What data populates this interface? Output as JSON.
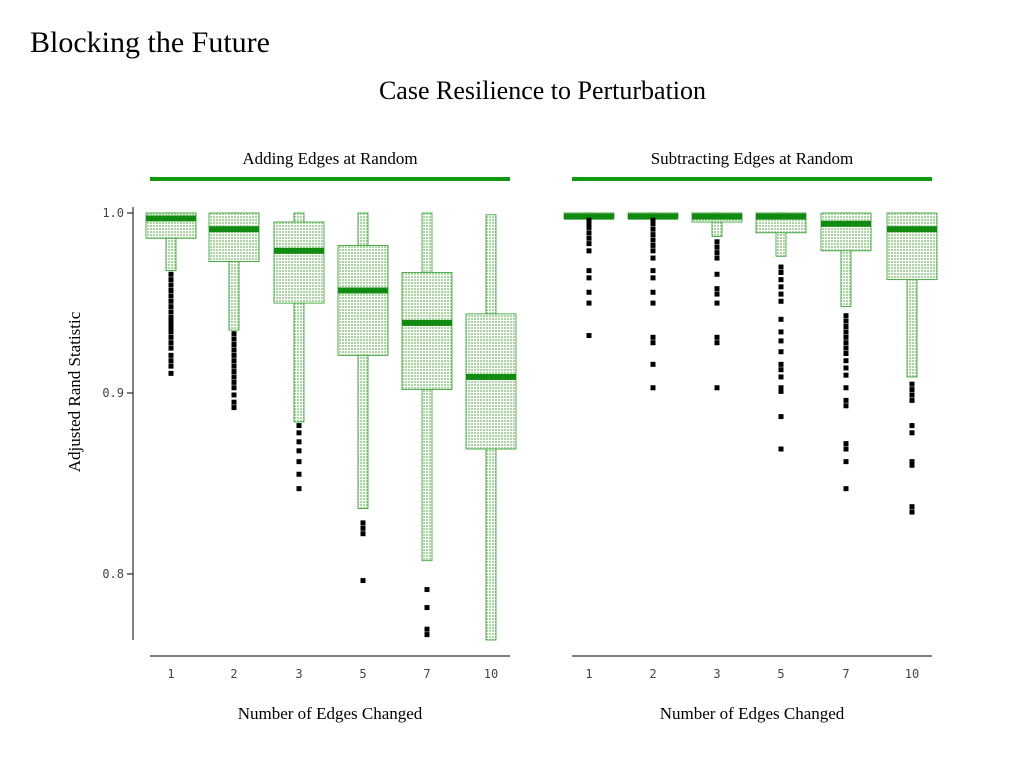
{
  "slide_title": "Blocking the Future",
  "colors": {
    "box_fill": "#cfe8c9",
    "box_edge": "#2a9a2a",
    "median": "#118a11",
    "strip": "#119911",
    "outlier": "#000000",
    "axis": "#000000"
  },
  "chart_data": {
    "type": "boxplot",
    "title": "Case Resilience to Perturbation",
    "ylabel": "Adjusted Rand Statistic",
    "ylim": [
      0.763,
      1.0
    ],
    "yticks": [
      "0.8",
      "0.9",
      "1.0"
    ],
    "grid": false,
    "panels": [
      {
        "name": "Adding Edges at Random",
        "xlabel": "Number of Edges Changed",
        "categories": [
          "1",
          "2",
          "3",
          "5",
          "7",
          "10"
        ],
        "boxes": [
          {
            "q1": 0.986,
            "median": 0.997,
            "q3": 1.0,
            "whisker_low": 0.968,
            "whisker_high": 1.0,
            "outliers": [
              0.966,
              0.963,
              0.96,
              0.957,
              0.954,
              0.951,
              0.948,
              0.945,
              0.942,
              0.94,
              0.938,
              0.936,
              0.934,
              0.931,
              0.928,
              0.925,
              0.921,
              0.918,
              0.915,
              0.911
            ]
          },
          {
            "q1": 0.973,
            "median": 0.991,
            "q3": 1.0,
            "whisker_low": 0.935,
            "whisker_high": 1.0,
            "outliers": [
              0.933,
              0.93,
              0.927,
              0.924,
              0.921,
              0.918,
              0.915,
              0.912,
              0.909,
              0.906,
              0.903,
              0.899,
              0.895,
              0.892
            ]
          },
          {
            "q1": 0.95,
            "median": 0.979,
            "q3": 0.995,
            "whisker_low": 0.884,
            "whisker_high": 1.0,
            "outliers": [
              0.882,
              0.878,
              0.873,
              0.868,
              0.862,
              0.855,
              0.847
            ]
          },
          {
            "q1": 0.921,
            "median": 0.957,
            "q3": 0.982,
            "whisker_low": 0.836,
            "whisker_high": 1.0,
            "outliers": [
              0.828,
              0.825,
              0.822,
              0.796
            ]
          },
          {
            "q1": 0.902,
            "median": 0.939,
            "q3": 0.967,
            "whisker_low": 0.807,
            "whisker_high": 1.0,
            "outliers": [
              0.791,
              0.781,
              0.769,
              0.766
            ]
          },
          {
            "q1": 0.869,
            "median": 0.909,
            "q3": 0.944,
            "whisker_low": 0.763,
            "whisker_high": 0.999,
            "outliers": []
          }
        ]
      },
      {
        "name": "Subtracting Edges at Random",
        "xlabel": "Number of Edges Changed",
        "categories": [
          "1",
          "2",
          "3",
          "5",
          "7",
          "10"
        ],
        "boxes": [
          {
            "q1": 0.997,
            "median": 0.998,
            "q3": 1.0,
            "whisker_low": 0.997,
            "whisker_high": 1.0,
            "outliers": [
              0.996,
              0.994,
              0.992,
              0.989,
              0.986,
              0.983,
              0.979,
              0.968,
              0.964,
              0.956,
              0.95,
              0.932
            ]
          },
          {
            "q1": 0.997,
            "median": 0.998,
            "q3": 1.0,
            "whisker_low": 0.997,
            "whisker_high": 1.0,
            "outliers": [
              0.996,
              0.994,
              0.991,
              0.988,
              0.985,
              0.982,
              0.979,
              0.975,
              0.968,
              0.964,
              0.956,
              0.95,
              0.931,
              0.928,
              0.916,
              0.903
            ]
          },
          {
            "q1": 0.995,
            "median": 0.998,
            "q3": 1.0,
            "whisker_low": 0.987,
            "whisker_high": 1.0,
            "outliers": [
              0.984,
              0.981,
              0.978,
              0.975,
              0.966,
              0.958,
              0.955,
              0.95,
              0.931,
              0.928,
              0.903
            ]
          },
          {
            "q1": 0.989,
            "median": 0.998,
            "q3": 1.0,
            "whisker_low": 0.976,
            "whisker_high": 1.0,
            "outliers": [
              0.97,
              0.967,
              0.963,
              0.959,
              0.955,
              0.951,
              0.941,
              0.934,
              0.929,
              0.923,
              0.916,
              0.913,
              0.909,
              0.903,
              0.901,
              0.887,
              0.869
            ]
          },
          {
            "q1": 0.979,
            "median": 0.994,
            "q3": 1.0,
            "whisker_low": 0.948,
            "whisker_high": 1.0,
            "outliers": [
              0.943,
              0.94,
              0.937,
              0.934,
              0.931,
              0.928,
              0.925,
              0.922,
              0.918,
              0.914,
              0.91,
              0.903,
              0.896,
              0.893,
              0.872,
              0.869,
              0.862,
              0.847
            ]
          },
          {
            "q1": 0.963,
            "median": 0.991,
            "q3": 1.0,
            "whisker_low": 0.909,
            "whisker_high": 1.0,
            "outliers": [
              0.905,
              0.902,
              0.899,
              0.896,
              0.882,
              0.878,
              0.862,
              0.86,
              0.837,
              0.834
            ]
          }
        ]
      }
    ]
  }
}
